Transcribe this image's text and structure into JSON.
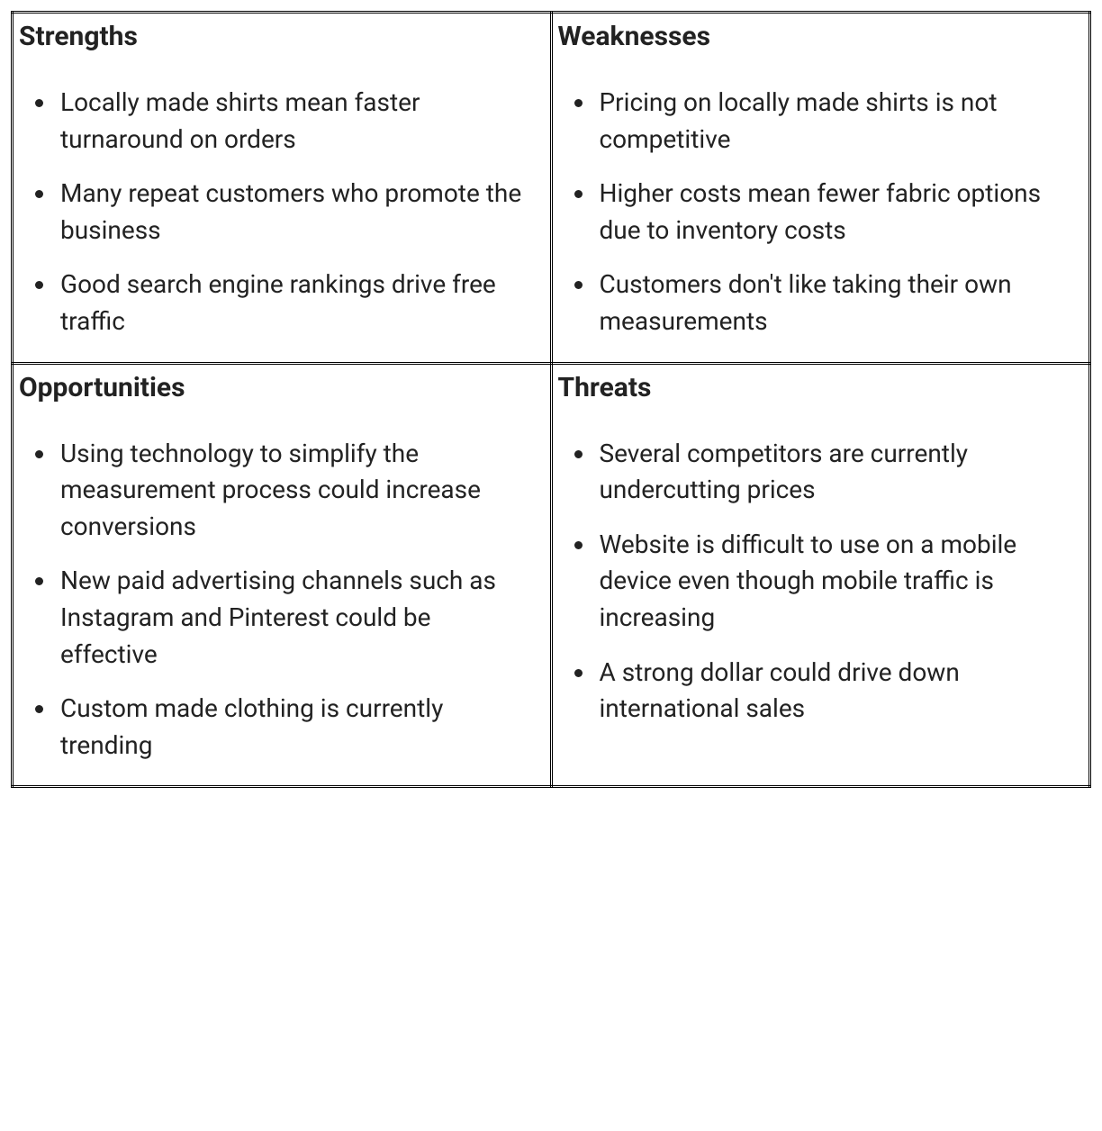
{
  "swot": {
    "type": "swot-table",
    "layout": "2x2",
    "background_color": "#ffffff",
    "border_color": "#000000",
    "border_style": "double",
    "text_color": "#222222",
    "title_fontsize": 30,
    "title_fontweight": 700,
    "body_fontsize": 28,
    "quadrants": [
      {
        "key": "strengths",
        "title": "Strengths",
        "items": [
          "Locally made shirts mean faster turnaround on orders",
          "Many repeat customers who promote the business",
          "Good search engine rankings drive free traffic"
        ]
      },
      {
        "key": "weaknesses",
        "title": "Weaknesses",
        "items": [
          "Pricing on locally made shirts is not competitive",
          "Higher costs mean fewer fabric options due to inventory costs",
          "Customers don't like taking their own measurements"
        ]
      },
      {
        "key": "opportunities",
        "title": "Opportunities",
        "items": [
          "Using technology to simplify the measurement process could increase conversions",
          "New paid advertising channels such as Instagram and Pinterest could be effective",
          "Custom made clothing is currently trending"
        ]
      },
      {
        "key": "threats",
        "title": "Threats",
        "items": [
          "Several competitors are currently undercutting prices",
          "Website is difficult to use on a mobile device even though mobile traffic is increasing",
          "A strong dollar could drive down international sales"
        ]
      }
    ]
  }
}
